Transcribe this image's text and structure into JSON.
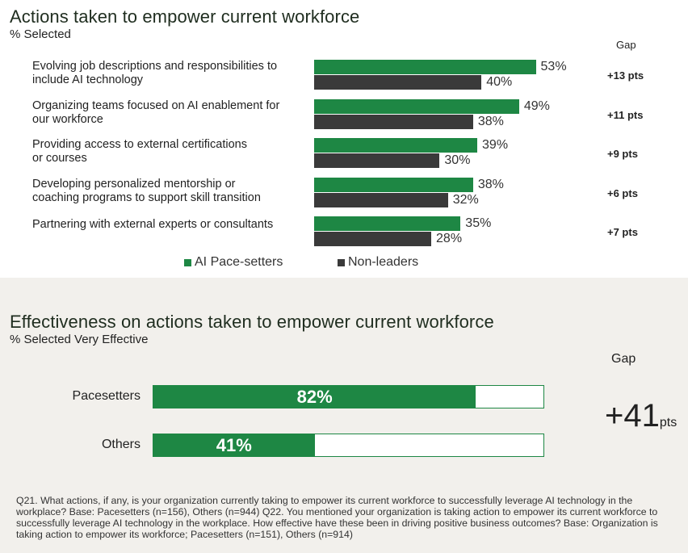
{
  "top_chart": {
    "title": "Actions taken to empower current workforce",
    "subtitle": "% Selected",
    "gap_header": "Gap",
    "legend": [
      {
        "label": "AI Pace-setters",
        "color": "#1e8744"
      },
      {
        "label": "Non-leaders",
        "color": "#3a3a3a"
      }
    ]
  },
  "bottom_chart": {
    "title": "Effectiveness on actions taken to empower current workforce",
    "subtitle": "% Selected Very Effective",
    "gap_header": "Gap",
    "gap_value": "+41",
    "gap_unit": "pts"
  },
  "chart_data": [
    {
      "type": "bar",
      "orientation": "horizontal",
      "title": "Actions taken to empower current workforce",
      "subtitle": "% Selected",
      "categories": [
        [
          "Evolving job descriptions and responsibilities to",
          "include AI technology"
        ],
        [
          "Organizing teams focused on AI enablement for",
          "our workforce"
        ],
        [
          "Providing access to external certifications",
          "or courses"
        ],
        [
          "Developing personalized mentorship or",
          "coaching programs to support skill transition"
        ],
        [
          "Partnering with external experts or consultants"
        ]
      ],
      "series": [
        {
          "name": "AI Pace-setters",
          "values": [
            53,
            49,
            39,
            38,
            35
          ],
          "labels": [
            "53%",
            "49%",
            "39%",
            "38%",
            "35%"
          ],
          "color": "#1e8744"
        },
        {
          "name": "Non-leaders",
          "values": [
            40,
            38,
            30,
            32,
            28
          ],
          "labels": [
            "40%",
            "38%",
            "30%",
            "32%",
            "28%"
          ],
          "color": "#3a3a3a"
        }
      ],
      "gap_labels": [
        "+13 pts",
        "+11 pts",
        "+9 pts",
        "+6 pts",
        "+7 pts"
      ],
      "xlim": [
        0,
        100
      ],
      "grid": false,
      "legend_position": "bottom"
    },
    {
      "type": "bar",
      "orientation": "horizontal",
      "title": "Effectiveness on actions taken to empower current workforce",
      "subtitle": "% Selected Very Effective",
      "categories": [
        "Pacesetters",
        "Others"
      ],
      "values": [
        82,
        41
      ],
      "labels": [
        "82%",
        "41%"
      ],
      "xlim": [
        0,
        100
      ],
      "gap": "+41pts",
      "color": "#1e8744"
    }
  ],
  "footnote": "Q21. What actions, if any, is your organization currently taking to empower its current workforce to successfully leverage AI technology in the workplace? Base: Pacesetters (n=156), Others (n=944) Q22. You mentioned your organization is taking action to empower its current workforce to successfully leverage AI technology in the workplace. How effective have these been in driving positive business outcomes? Base: Organization is taking action to empower its workforce; Pacesetters (n=151), Others (n=914)"
}
